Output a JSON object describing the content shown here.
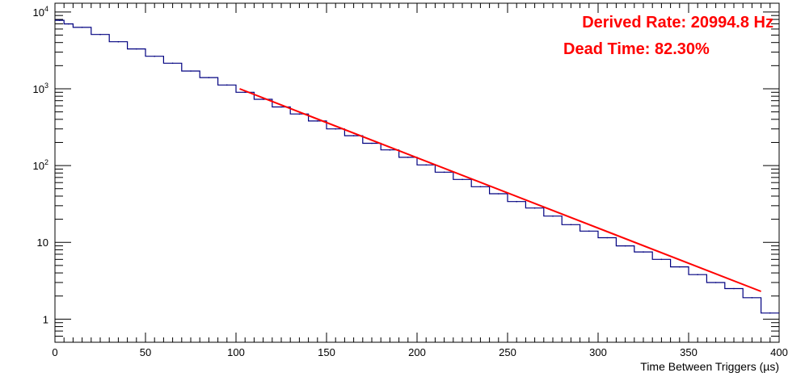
{
  "chart_data": {
    "type": "line",
    "xlabel": "Time Between Triggers (µs)",
    "ylabel": "",
    "xlim": [
      0,
      400
    ],
    "ylim": [
      0.5,
      13000
    ],
    "y_scale": "log",
    "grid": false,
    "x_ticks": [
      0,
      50,
      100,
      150,
      200,
      250,
      300,
      350,
      400
    ],
    "y_ticks": [
      {
        "value": 1,
        "label": "1"
      },
      {
        "value": 10,
        "label": "10"
      },
      {
        "value": 100,
        "label": "10",
        "exponent": "2"
      },
      {
        "value": 1000,
        "label": "10",
        "exponent": "3"
      },
      {
        "value": 10000,
        "label": "10",
        "exponent": "4"
      }
    ],
    "annotations": [
      "Derived Rate: 20994.8 Hz",
      "Dead Time: 82.30%"
    ],
    "series": [
      {
        "color": "#000080",
        "render": "histogram",
        "x": [
          0,
          5,
          10,
          20,
          30,
          40,
          50,
          60,
          70,
          80,
          90,
          100,
          110,
          120,
          130,
          140,
          150,
          160,
          170,
          180,
          190,
          200,
          210,
          220,
          230,
          240,
          250,
          260,
          270,
          280,
          290,
          300,
          310,
          320,
          330,
          340,
          350,
          360,
          370,
          380,
          390,
          400
        ],
        "values": [
          7800,
          7000,
          6300,
          5100,
          4100,
          3300,
          2650,
          2150,
          1700,
          1400,
          1120,
          900,
          730,
          580,
          470,
          380,
          300,
          245,
          195,
          160,
          128,
          102,
          82,
          66,
          53,
          43,
          34,
          28,
          22,
          17,
          14,
          11.5,
          9,
          7.5,
          6,
          4.8,
          3.8,
          3,
          2.5,
          1.9,
          1.2,
          1
        ]
      },
      {
        "color": "#ff0000",
        "render": "fit",
        "x": [
          102,
          390
        ],
        "values": [
          1000,
          2.3
        ]
      }
    ]
  }
}
